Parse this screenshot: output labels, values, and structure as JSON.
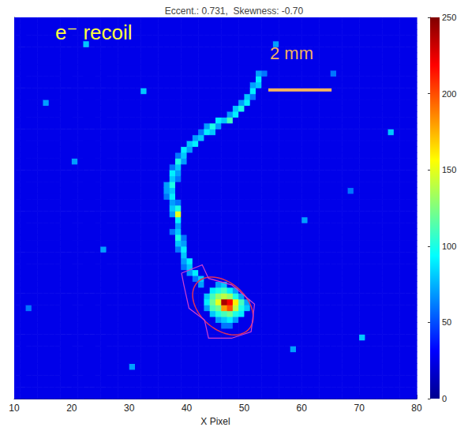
{
  "chart_data": {
    "type": "heatmap",
    "title": "Eccent.: 0.731,  Skewness: -0.70",
    "x_label": "X Pixel",
    "annotation": "e⁻ recoil",
    "scale_bar": {
      "label": "2 mm",
      "length": 11
    },
    "xlim": [
      10,
      80
    ],
    "xticks": [
      10,
      20,
      30,
      40,
      50,
      60,
      70,
      80
    ],
    "ylim": [
      10,
      75
    ],
    "yticks": [
      20,
      30,
      40,
      50,
      60,
      70
    ],
    "tick_labels": "x",
    "grid": false,
    "background_value": 25,
    "cells": [
      [
        45,
        29,
        70
      ],
      [
        46,
        29,
        80
      ],
      [
        44,
        28,
        90
      ],
      [
        45,
        28,
        100
      ],
      [
        46,
        28,
        110
      ],
      [
        47,
        28,
        90
      ],
      [
        48,
        28,
        70
      ],
      [
        43,
        27,
        80
      ],
      [
        44,
        27,
        110
      ],
      [
        45,
        27,
        130
      ],
      [
        46,
        27,
        140
      ],
      [
        47,
        27,
        130
      ],
      [
        48,
        27,
        100
      ],
      [
        49,
        27,
        70
      ],
      [
        43,
        26,
        90
      ],
      [
        44,
        26,
        120
      ],
      [
        45,
        26,
        150
      ],
      [
        46,
        26,
        240
      ],
      [
        47,
        26,
        220
      ],
      [
        48,
        26,
        160
      ],
      [
        49,
        26,
        110
      ],
      [
        50,
        26,
        70
      ],
      [
        43,
        25,
        70
      ],
      [
        44,
        25,
        110
      ],
      [
        45,
        25,
        120
      ],
      [
        46,
        25,
        180
      ],
      [
        47,
        25,
        200
      ],
      [
        48,
        25,
        140
      ],
      [
        49,
        25,
        100
      ],
      [
        50,
        25,
        80
      ],
      [
        44,
        24,
        80
      ],
      [
        45,
        24,
        100
      ],
      [
        46,
        24,
        110
      ],
      [
        47,
        24,
        120
      ],
      [
        48,
        24,
        100
      ],
      [
        49,
        24,
        90
      ],
      [
        45,
        23,
        70
      ],
      [
        46,
        23,
        80
      ],
      [
        47,
        23,
        90
      ],
      [
        48,
        23,
        70
      ],
      [
        46,
        22,
        60
      ],
      [
        47,
        22,
        60
      ],
      [
        42,
        29,
        70
      ],
      [
        42,
        30,
        80
      ],
      [
        41,
        30,
        60
      ],
      [
        41,
        31,
        90
      ],
      [
        40,
        31,
        70
      ],
      [
        40,
        32,
        80
      ],
      [
        39,
        32,
        60
      ],
      [
        40,
        33,
        90
      ],
      [
        39,
        33,
        70
      ],
      [
        39,
        34,
        80
      ],
      [
        39,
        35,
        90
      ],
      [
        38,
        35,
        60
      ],
      [
        39,
        36,
        70
      ],
      [
        38,
        36,
        80
      ],
      [
        38,
        37,
        100
      ],
      [
        39,
        37,
        60
      ],
      [
        38,
        38,
        80
      ],
      [
        37,
        38,
        60
      ],
      [
        38,
        39,
        70
      ],
      [
        38,
        40,
        90
      ],
      [
        38,
        41,
        150
      ],
      [
        37,
        41,
        70
      ],
      [
        38,
        42,
        100
      ],
      [
        37,
        42,
        80
      ],
      [
        37,
        43,
        70
      ],
      [
        38,
        43,
        60
      ],
      [
        37,
        44,
        90
      ],
      [
        36,
        44,
        60
      ],
      [
        37,
        45,
        80
      ],
      [
        36,
        45,
        70
      ],
      [
        37,
        46,
        100
      ],
      [
        36,
        46,
        70
      ],
      [
        37,
        47,
        80
      ],
      [
        38,
        47,
        60
      ],
      [
        37,
        48,
        90
      ],
      [
        38,
        48,
        70
      ],
      [
        38,
        49,
        80
      ],
      [
        37,
        49,
        60
      ],
      [
        38,
        50,
        100
      ],
      [
        39,
        50,
        70
      ],
      [
        39,
        51,
        80
      ],
      [
        38,
        51,
        60
      ],
      [
        39,
        52,
        90
      ],
      [
        40,
        52,
        70
      ],
      [
        40,
        53,
        80
      ],
      [
        41,
        53,
        90
      ],
      [
        41,
        54,
        70
      ],
      [
        42,
        54,
        80
      ],
      [
        42,
        55,
        60
      ],
      [
        43,
        55,
        90
      ],
      [
        43,
        56,
        70
      ],
      [
        44,
        55,
        80
      ],
      [
        44,
        56,
        100
      ],
      [
        45,
        56,
        70
      ],
      [
        45,
        57,
        90
      ],
      [
        46,
        57,
        80
      ],
      [
        47,
        57,
        110
      ],
      [
        47,
        58,
        70
      ],
      [
        48,
        58,
        90
      ],
      [
        48,
        59,
        80
      ],
      [
        49,
        59,
        100
      ],
      [
        49,
        60,
        70
      ],
      [
        50,
        60,
        90
      ],
      [
        50,
        61,
        80
      ],
      [
        51,
        61,
        60
      ],
      [
        51,
        62,
        90
      ],
      [
        51,
        63,
        70
      ],
      [
        52,
        63,
        80
      ],
      [
        52,
        64,
        90
      ],
      [
        52,
        65,
        70
      ],
      [
        53,
        65,
        60
      ],
      [
        22,
        70,
        80
      ],
      [
        15,
        60,
        70
      ],
      [
        60,
        40,
        70
      ],
      [
        70,
        20,
        80
      ],
      [
        30,
        15,
        70
      ],
      [
        75,
        55,
        80
      ],
      [
        55,
        70,
        70
      ],
      [
        65,
        65,
        60
      ],
      [
        25,
        35,
        70
      ],
      [
        12,
        25,
        60
      ],
      [
        58,
        18,
        70
      ],
      [
        68,
        45,
        60
      ],
      [
        32,
        62,
        80
      ],
      [
        20,
        50,
        70
      ]
    ],
    "ellipse": {
      "center": [
        46.3,
        25.8
      ],
      "axes": [
        6,
        4
      ],
      "angle": -40
    },
    "contour": [
      [
        39.1,
        31.4
      ],
      [
        42.7,
        32.8
      ],
      [
        43.8,
        30.5
      ],
      [
        47.8,
        29.4
      ],
      [
        51.8,
        26.1
      ],
      [
        51.2,
        21.4
      ],
      [
        47.8,
        20.3
      ],
      [
        43.8,
        20.3
      ],
      [
        43.1,
        23.4
      ],
      [
        40.4,
        25.4
      ],
      [
        39.5,
        29.4
      ]
    ],
    "colorbar": {
      "range": [
        0,
        250
      ],
      "ticks": [
        0,
        50,
        100,
        150,
        200,
        250
      ]
    }
  }
}
